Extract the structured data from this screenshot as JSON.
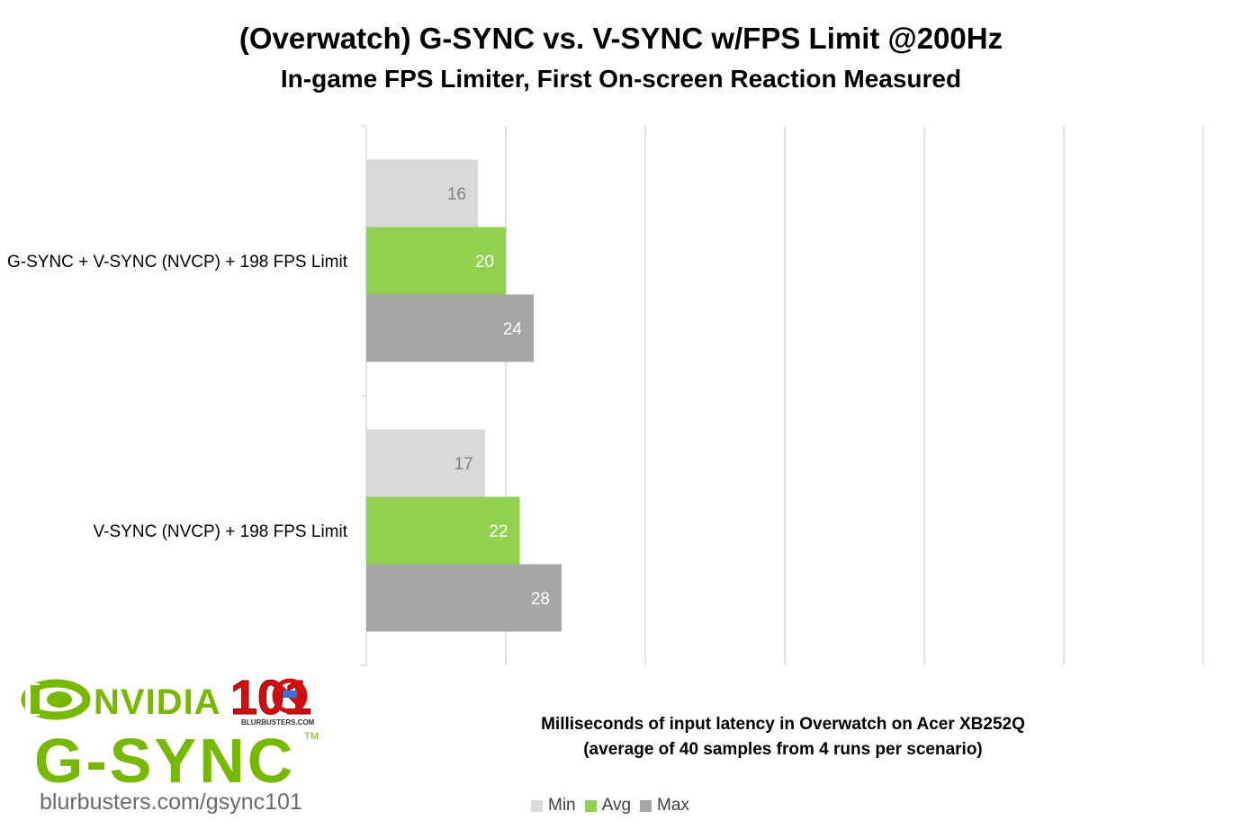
{
  "chart_data": {
    "type": "bar",
    "orientation": "horizontal",
    "title": "(Overwatch) G-SYNC vs. V-SYNC w/FPS Limit @200Hz",
    "subtitle": "In-game FPS Limiter, First On-screen Reaction Measured",
    "categories": [
      "G-SYNC + V-SYNC (NVCP) + 198 FPS Limit",
      "V-SYNC (NVCP) + 198 FPS Limit"
    ],
    "series": [
      {
        "name": "Min",
        "values": [
          16,
          17
        ],
        "color": "#d9d9d9",
        "label_color": "#7f7f7f"
      },
      {
        "name": "Avg",
        "values": [
          20,
          22
        ],
        "color": "#92d050",
        "label_color": "#ffffff"
      },
      {
        "name": "Max",
        "values": [
          24,
          28
        ],
        "color": "#a6a6a6",
        "label_color": "#ffffff"
      }
    ],
    "xlim": [
      0,
      120
    ],
    "xticks": [
      "0",
      "20",
      "40",
      "60",
      "80",
      "100",
      "120"
    ],
    "xlabel_lines": [
      "Milliseconds of input latency in Overwatch on Acer XB252Q",
      "(average of 40 samples from 4 runs per scenario)"
    ],
    "grid": "vertical",
    "legend_position": "bottom"
  },
  "logo": {
    "brand": "NVIDIA",
    "product": "G-SYNC",
    "badge": "101",
    "badge_sub": "BLURBUSTERS.COM",
    "tm": "TM",
    "url": "blurbusters.com/gsync101"
  }
}
